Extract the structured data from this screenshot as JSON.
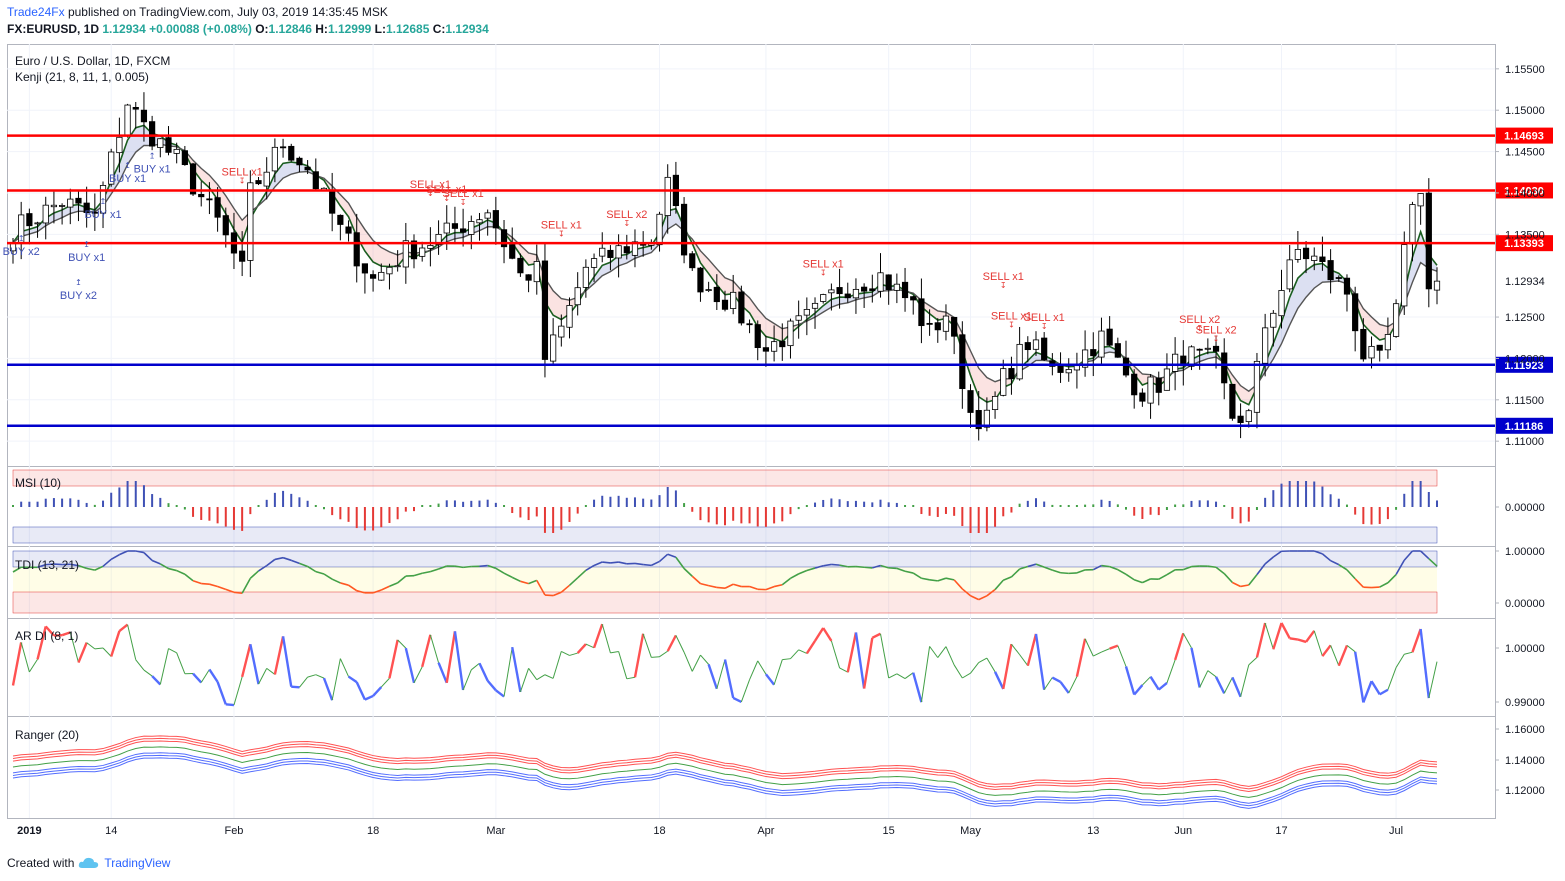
{
  "header": {
    "publisher": "Trade24Fx",
    "published_text": "published on TradingView.com, July 03, 2019 14:35:45 MSK",
    "symbol": "FX:EURUSD, 1D",
    "last": "1.12934",
    "change": "+0.00088 (+0.08%)",
    "o_label": "O:",
    "o_value": "1.12846",
    "h_label": "H:",
    "h_value": "1.12999",
    "l_label": "L:",
    "l_value": "1.12685",
    "c_label": "C:",
    "c_value": "1.12934"
  },
  "legend": {
    "title": "Euro / U.S. Dollar, 1D, FXCM",
    "kenji": "Kenji (21, 8, 11, 1, 0.005)"
  },
  "footer": {
    "created_with": "Created with",
    "tradingview": "TradingView"
  },
  "colors": {
    "up_candle": "#ffffff",
    "down_candle": "#000000",
    "resistance": "#ff0000",
    "support": "#0000cc",
    "buy_text": "#3f51b5",
    "sell_text": "#e53935",
    "axis_text": "#131722"
  },
  "chart_data": [
    {
      "type": "candlestick",
      "title": "Euro / U.S. Dollar, 1D, FXCM",
      "ylim": [
        1.107,
        1.158
      ],
      "y_ticks": [
        "1.15500",
        "1.15000",
        "1.14500",
        "1.14000",
        "1.13500",
        "1.12500",
        "1.12000",
        "1.11500",
        "1.11000"
      ],
      "x_tick_labels": [
        "2019",
        "14",
        "Feb",
        "18",
        "Mar",
        "18",
        "Apr",
        "15",
        "May",
        "13",
        "Jun",
        "17",
        "Jul"
      ],
      "levels": [
        {
          "value": 1.14693,
          "label": "1.14693",
          "color": "#ff0000"
        },
        {
          "value": 1.1403,
          "label": "1.14030",
          "color": "#ff0000"
        },
        {
          "value": 1.13393,
          "label": "1.13393",
          "color": "#ff0000"
        },
        {
          "value": 1.11923,
          "label": "1.11923",
          "color": "#0000cc"
        },
        {
          "value": 1.11186,
          "label": "1.11186",
          "color": "#0000cc"
        }
      ],
      "last_price": {
        "value": 1.12934,
        "label": "1.12934"
      },
      "signals": [
        {
          "text": "BUY x2",
          "index": 1,
          "side": "buy",
          "price": 1.1325
        },
        {
          "text": "BUY x2",
          "index": 8,
          "side": "buy",
          "price": 1.1272
        },
        {
          "text": "BUY x1",
          "index": 9,
          "side": "buy",
          "price": 1.1318
        },
        {
          "text": "BUY x1",
          "index": 11,
          "side": "buy",
          "price": 1.137
        },
        {
          "text": "BUY x1",
          "index": 14,
          "side": "buy",
          "price": 1.1413
        },
        {
          "text": "BUY x1",
          "index": 17,
          "side": "buy",
          "price": 1.1425
        },
        {
          "text": "SELL x1",
          "index": 28,
          "side": "sell",
          "price": 1.1421
        },
        {
          "text": "SELL x1",
          "index": 51,
          "side": "sell",
          "price": 1.1406
        },
        {
          "text": "SELL x1",
          "index": 53,
          "side": "sell",
          "price": 1.14
        },
        {
          "text": "SELL x1",
          "index": 55,
          "side": "sell",
          "price": 1.1395
        },
        {
          "text": "SELL x1",
          "index": 67,
          "side": "sell",
          "price": 1.1357
        },
        {
          "text": "SELL x2",
          "index": 75,
          "side": "sell",
          "price": 1.137
        },
        {
          "text": "SELL x1",
          "index": 99,
          "side": "sell",
          "price": 1.131
        },
        {
          "text": "SELL x1",
          "index": 121,
          "side": "sell",
          "price": 1.1295
        },
        {
          "text": "SELL x1",
          "index": 122,
          "side": "sell",
          "price": 1.1247
        },
        {
          "text": "SELL x1",
          "index": 126,
          "side": "sell",
          "price": 1.1245
        },
        {
          "text": "SELL x2",
          "index": 145,
          "side": "sell",
          "price": 1.1243
        },
        {
          "text": "SELL x2",
          "index": 147,
          "side": "sell",
          "price": 1.123
        }
      ]
    },
    {
      "type": "bar",
      "name": "MSI (10)",
      "title": "MSI (10)",
      "y_ticks": [
        "0.00000"
      ]
    },
    {
      "type": "line",
      "name": "TDI (13, 21)",
      "title": "TDI (13, 21)",
      "y_ticks": [
        "1.00000",
        "0.00000"
      ]
    },
    {
      "type": "line",
      "name": "AR DI (8, 1)",
      "title": "AR DI (8, 1)",
      "y_ticks": [
        "1.00000",
        "0.99000"
      ]
    },
    {
      "type": "line",
      "name": "Ranger (20)",
      "title": "Ranger (20)",
      "y_ticks": [
        "1.16000",
        "1.14000",
        "1.12000"
      ]
    }
  ]
}
